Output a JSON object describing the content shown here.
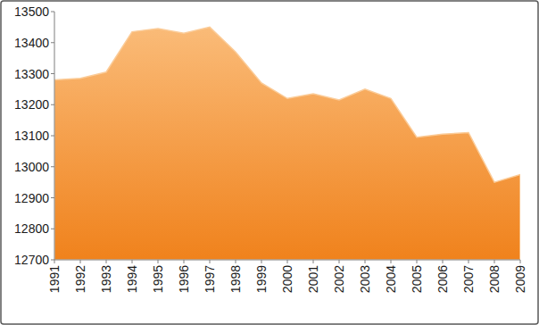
{
  "chart_data": {
    "type": "area",
    "categories": [
      "1991",
      "1992",
      "1993",
      "1994",
      "1995",
      "1996",
      "1997",
      "1998",
      "1999",
      "2000",
      "2001",
      "2002",
      "2003",
      "2004",
      "2005",
      "2006",
      "2007",
      "2008",
      "2009"
    ],
    "values": [
      13280,
      13285,
      13305,
      13435,
      13445,
      13430,
      13450,
      13370,
      13270,
      13220,
      13235,
      13215,
      13250,
      13220,
      13095,
      13105,
      13110,
      12950,
      12975
    ],
    "color": "#f7962f",
    "ylim": [
      12700,
      13500
    ],
    "yticks": [
      12700,
      12800,
      12900,
      13000,
      13100,
      13200,
      13300,
      13400,
      13500
    ],
    "grid": false
  }
}
